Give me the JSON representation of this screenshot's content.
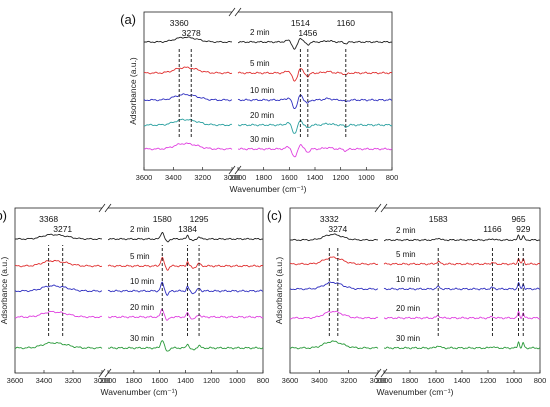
{
  "chart_data": [
    {
      "panel_label": "(a)",
      "type": "line",
      "xlabel": "Wavenumber (cm⁻¹)",
      "ylabel": "Adsorbance (a.u.)",
      "x_reversed": true,
      "axis_break": [
        3000,
        2000
      ],
      "x_ticks": [
        "3600",
        "3400",
        "3200",
        "3000",
        "2000",
        "1800",
        "1600",
        "1400",
        "1200",
        "1000",
        "800"
      ],
      "series_labels": [
        "30 min",
        "20 min",
        "10 min",
        "5 min",
        "2 min"
      ],
      "colors": [
        "#e040e0",
        "#2aa0a0",
        "#3030c0",
        "#e03030",
        "#202020"
      ],
      "peaks": [
        {
          "label": "3360",
          "x": 3360
        },
        {
          "label": "3278",
          "x": 3278
        },
        {
          "label": "1514",
          "x": 1514
        },
        {
          "label": "1456",
          "x": 1456
        },
        {
          "label": "1160",
          "x": 1160
        }
      ],
      "features": [
        {
          "x": 3360,
          "amp": 0.35,
          "w": 50
        },
        {
          "x": 3278,
          "amp": 0.45,
          "w": 60
        },
        {
          "x": 1600,
          "amp": 0.25,
          "w": 25
        },
        {
          "x": 1560,
          "amp": -1.0,
          "w": 18
        },
        {
          "x": 1514,
          "amp": 0.55,
          "w": 14
        },
        {
          "x": 1456,
          "amp": -0.35,
          "w": 14
        },
        {
          "x": 1300,
          "amp": 0.15,
          "w": 30
        },
        {
          "x": 1160,
          "amp": -0.2,
          "w": 14
        }
      ]
    },
    {
      "panel_label": "(b)",
      "type": "line",
      "xlabel": "Wavenumber (cm⁻¹)",
      "ylabel": "Adsorbance (a.u.)",
      "x_reversed": true,
      "axis_break": [
        3000,
        2000
      ],
      "x_ticks": [
        "3600",
        "3400",
        "3200",
        "3000",
        "2000",
        "1800",
        "1600",
        "1400",
        "1200",
        "1000",
        "800"
      ],
      "series_labels": [
        "30 min",
        "20 min",
        "10 min",
        "5 min",
        "2 min"
      ],
      "colors": [
        "#2a9a3a",
        "#e040e0",
        "#3030c0",
        "#e03030",
        "#202020"
      ],
      "peaks": [
        {
          "label": "3368",
          "x": 3368
        },
        {
          "label": "3271",
          "x": 3271
        },
        {
          "label": "1580",
          "x": 1580
        },
        {
          "label": "1384",
          "x": 1384
        },
        {
          "label": "1295",
          "x": 1295
        }
      ],
      "features": [
        {
          "x": 3368,
          "amp": 0.45,
          "w": 55
        },
        {
          "x": 3271,
          "amp": 0.35,
          "w": 60
        },
        {
          "x": 1580,
          "amp": 0.9,
          "w": 12
        },
        {
          "x": 1540,
          "amp": -0.4,
          "w": 12
        },
        {
          "x": 1384,
          "amp": 0.5,
          "w": 8
        },
        {
          "x": 1340,
          "amp": -0.25,
          "w": 12
        },
        {
          "x": 1295,
          "amp": 0.3,
          "w": 10
        }
      ]
    },
    {
      "panel_label": "(c)",
      "type": "line",
      "xlabel": "Wavenumber (cm⁻¹)",
      "ylabel": "Adsorbance (a.u.)",
      "x_reversed": true,
      "axis_break": [
        3000,
        2000
      ],
      "x_ticks": [
        "3600",
        "3400",
        "3200",
        "3000",
        "2000",
        "1800",
        "1600",
        "1400",
        "1200",
        "1000",
        "800"
      ],
      "series_labels": [
        "30 min",
        "20 min",
        "10 min",
        "5 min",
        "2 min"
      ],
      "colors": [
        "#2a9a3a",
        "#e040e0",
        "#3030c0",
        "#e03030",
        "#202020"
      ],
      "peaks": [
        {
          "label": "3332",
          "x": 3332
        },
        {
          "label": "3274",
          "x": 3274
        },
        {
          "label": "1583",
          "x": 1583
        },
        {
          "label": "1166",
          "x": 1166
        },
        {
          "label": "965",
          "x": 965
        },
        {
          "label": "929",
          "x": 929
        }
      ],
      "features": [
        {
          "x": 3332,
          "amp": 0.45,
          "w": 50
        },
        {
          "x": 3274,
          "amp": 0.4,
          "w": 55
        },
        {
          "x": 1583,
          "amp": 0.25,
          "w": 14
        },
        {
          "x": 1166,
          "amp": 0.15,
          "w": 14
        },
        {
          "x": 965,
          "amp": 0.7,
          "w": 7
        },
        {
          "x": 929,
          "amp": 0.55,
          "w": 7
        }
      ]
    }
  ]
}
